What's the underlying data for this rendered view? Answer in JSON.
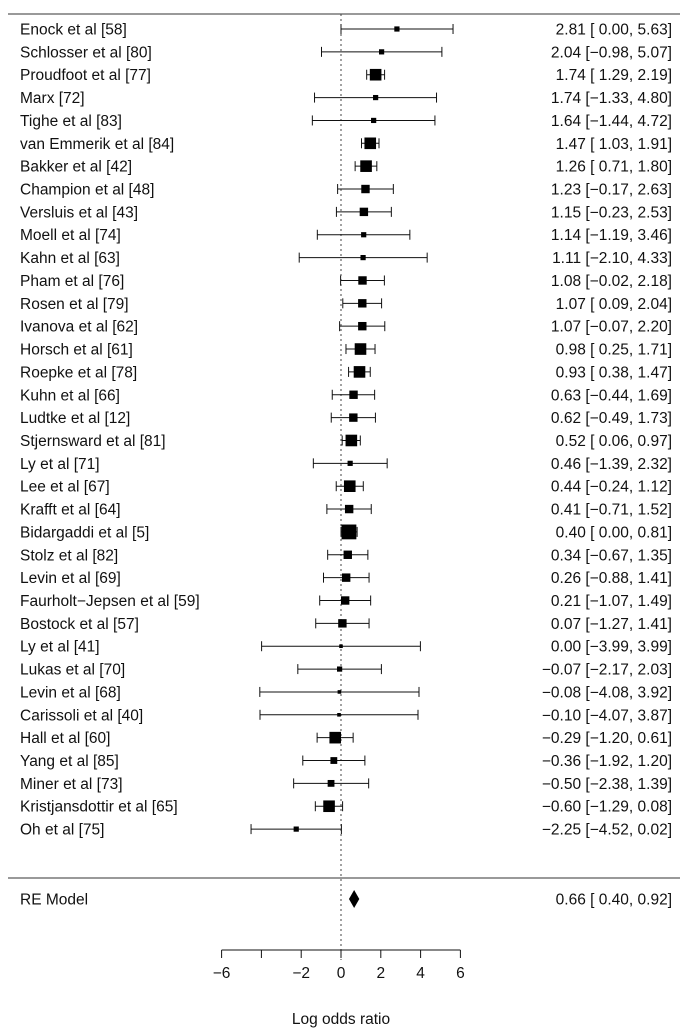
{
  "chart_data": {
    "type": "forest",
    "xlabel": "Log odds ratio",
    "xticks": [
      -6,
      -2,
      0,
      2,
      4,
      6
    ],
    "xlim": [
      -6,
      6
    ],
    "reference_line": 0,
    "studies": [
      {
        "label": "Enock et al [58]",
        "estimate": 2.81,
        "lower": 0.0,
        "upper": 5.63,
        "text": "2.81 [ 0.00, 5.63]",
        "weight": 1
      },
      {
        "label": "Schlosser et al [80]",
        "estimate": 2.04,
        "lower": -0.98,
        "upper": 5.07,
        "text": "2.04 [−0.98, 5.07]",
        "weight": 1
      },
      {
        "label": "Proudfoot et al [77]",
        "estimate": 1.74,
        "lower": 1.29,
        "upper": 2.19,
        "text": "1.74 [ 1.29, 2.19]",
        "weight": 3
      },
      {
        "label": "Marx [72]",
        "estimate": 1.74,
        "lower": -1.33,
        "upper": 4.8,
        "text": "1.74 [−1.33, 4.80]",
        "weight": 1
      },
      {
        "label": "Tighe et al [83]",
        "estimate": 1.64,
        "lower": -1.44,
        "upper": 4.72,
        "text": "1.64 [−1.44, 4.72]",
        "weight": 1
      },
      {
        "label": "van Emmerik et al [84]",
        "estimate": 1.47,
        "lower": 1.03,
        "upper": 1.91,
        "text": "1.47 [ 1.03, 1.91]",
        "weight": 3
      },
      {
        "label": "Bakker et al [42]",
        "estimate": 1.26,
        "lower": 0.71,
        "upper": 1.8,
        "text": "1.26 [ 0.71, 1.80]",
        "weight": 3
      },
      {
        "label": "Champion et al [48]",
        "estimate": 1.23,
        "lower": -0.17,
        "upper": 2.63,
        "text": "1.23 [−0.17, 2.63]",
        "weight": 2
      },
      {
        "label": "Versluis et al [43]",
        "estimate": 1.15,
        "lower": -0.23,
        "upper": 2.53,
        "text": "1.15 [−0.23, 2.53]",
        "weight": 2
      },
      {
        "label": "Moell et al [74]",
        "estimate": 1.14,
        "lower": -1.19,
        "upper": 3.46,
        "text": "1.14 [−1.19, 3.46]",
        "weight": 1
      },
      {
        "label": "Kahn et al [63]",
        "estimate": 1.11,
        "lower": -2.1,
        "upper": 4.33,
        "text": "1.11 [−2.10, 4.33]",
        "weight": 1
      },
      {
        "label": "Pham et al [76]",
        "estimate": 1.08,
        "lower": -0.02,
        "upper": 2.18,
        "text": "1.08 [−0.02, 2.18]",
        "weight": 2
      },
      {
        "label": "Rosen et al [79]",
        "estimate": 1.07,
        "lower": 0.09,
        "upper": 2.04,
        "text": "1.07 [ 0.09, 2.04]",
        "weight": 2
      },
      {
        "label": "Ivanova et al [62]",
        "estimate": 1.07,
        "lower": -0.07,
        "upper": 2.2,
        "text": "1.07 [−0.07, 2.20]",
        "weight": 2
      },
      {
        "label": "Horsch et al [61]",
        "estimate": 0.98,
        "lower": 0.25,
        "upper": 1.71,
        "text": "0.98 [ 0.25, 1.71]",
        "weight": 3
      },
      {
        "label": "Roepke et al [78]",
        "estimate": 0.93,
        "lower": 0.38,
        "upper": 1.47,
        "text": "0.93 [ 0.38, 1.47]",
        "weight": 3
      },
      {
        "label": "Kuhn et al [66]",
        "estimate": 0.63,
        "lower": -0.44,
        "upper": 1.69,
        "text": "0.63 [−0.44, 1.69]",
        "weight": 2
      },
      {
        "label": "Ludtke et al [12]",
        "estimate": 0.62,
        "lower": -0.49,
        "upper": 1.73,
        "text": "0.62 [−0.49, 1.73]",
        "weight": 2
      },
      {
        "label": "Stjernsward et al [81]",
        "estimate": 0.52,
        "lower": 0.06,
        "upper": 0.97,
        "text": "0.52 [ 0.06, 0.97]",
        "weight": 3
      },
      {
        "label": "Ly et al [71]",
        "estimate": 0.46,
        "lower": -1.39,
        "upper": 2.32,
        "text": "0.46 [−1.39, 2.32]",
        "weight": 1
      },
      {
        "label": "Lee et al [67]",
        "estimate": 0.44,
        "lower": -0.24,
        "upper": 1.12,
        "text": "0.44 [−0.24, 1.12]",
        "weight": 3
      },
      {
        "label": "Krafft et al [64]",
        "estimate": 0.41,
        "lower": -0.71,
        "upper": 1.52,
        "text": "0.41 [−0.71, 1.52]",
        "weight": 2
      },
      {
        "label": "Bidargaddi et al [5]",
        "estimate": 0.4,
        "lower": 0.0,
        "upper": 0.81,
        "text": "0.40 [ 0.00, 0.81]",
        "weight": 4
      },
      {
        "label": "Stolz et al [82]",
        "estimate": 0.34,
        "lower": -0.67,
        "upper": 1.35,
        "text": "0.34 [−0.67, 1.35]",
        "weight": 2
      },
      {
        "label": "Levin et al [69]",
        "estimate": 0.26,
        "lower": -0.88,
        "upper": 1.41,
        "text": "0.26 [−0.88, 1.41]",
        "weight": 2
      },
      {
        "label": "Faurholt−Jepsen et al [59]",
        "estimate": 0.21,
        "lower": -1.07,
        "upper": 1.49,
        "text": "0.21 [−1.07, 1.49]",
        "weight": 2
      },
      {
        "label": "Bostock et al [57]",
        "estimate": 0.07,
        "lower": -1.27,
        "upper": 1.41,
        "text": "0.07 [−1.27, 1.41]",
        "weight": 2
      },
      {
        "label": "Ly et al [41]",
        "estimate": 0.0,
        "lower": -3.99,
        "upper": 3.99,
        "text": "0.00 [−3.99, 3.99]",
        "weight": 0.5
      },
      {
        "label": "Lukas et al [70]",
        "estimate": -0.07,
        "lower": -2.17,
        "upper": 2.03,
        "text": "−0.07 [−2.17, 2.03]",
        "weight": 1
      },
      {
        "label": "Levin et al [68]",
        "estimate": -0.08,
        "lower": -4.08,
        "upper": 3.92,
        "text": "−0.08 [−4.08, 3.92]",
        "weight": 0.5
      },
      {
        "label": "Carissoli et al [40]",
        "estimate": -0.1,
        "lower": -4.07,
        "upper": 3.87,
        "text": "−0.10 [−4.07, 3.87]",
        "weight": 0.5
      },
      {
        "label": "Hall et al [60]",
        "estimate": -0.29,
        "lower": -1.2,
        "upper": 0.61,
        "text": "−0.29 [−1.20, 0.61]",
        "weight": 3
      },
      {
        "label": "Yang et al [85]",
        "estimate": -0.36,
        "lower": -1.92,
        "upper": 1.2,
        "text": "−0.36 [−1.92, 1.20]",
        "weight": 1.5
      },
      {
        "label": "Miner et al [73]",
        "estimate": -0.5,
        "lower": -2.38,
        "upper": 1.39,
        "text": "−0.50 [−2.38, 1.39]",
        "weight": 1.5
      },
      {
        "label": "Kristjansdottir et al [65]",
        "estimate": -0.6,
        "lower": -1.29,
        "upper": 0.08,
        "text": "−0.60 [−1.29, 0.08]",
        "weight": 3
      },
      {
        "label": "Oh et al [75]",
        "estimate": -2.25,
        "lower": -4.52,
        "upper": 0.02,
        "text": "−2.25 [−4.52, 0.02]",
        "weight": 1
      }
    ],
    "summary": {
      "label": "RE Model",
      "estimate": 0.66,
      "lower": 0.4,
      "upper": 0.92,
      "text": "0.66 [ 0.40, 0.92]"
    }
  }
}
